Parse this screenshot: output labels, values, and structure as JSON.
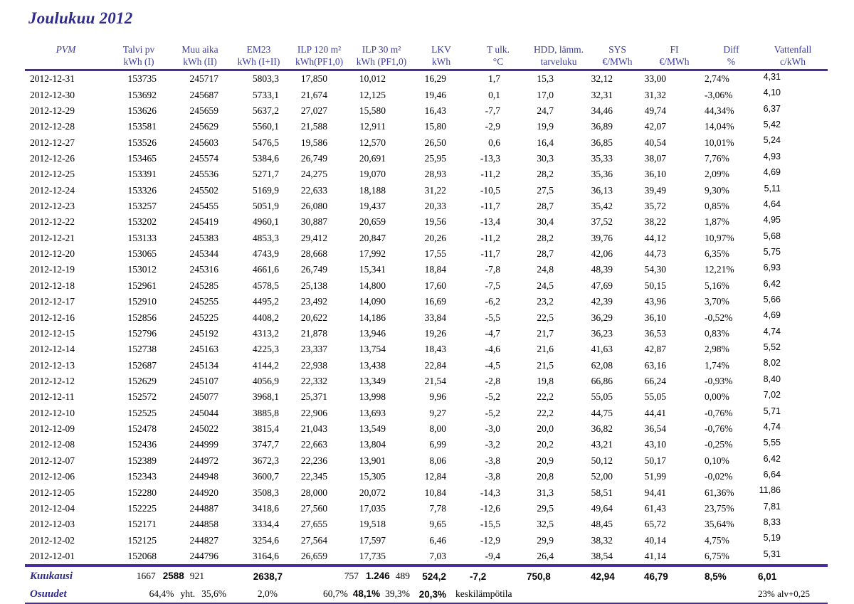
{
  "title": "Joulukuu 2012",
  "colors": {
    "title_text": "#2d2a8c",
    "header_text": "#3c3c9e",
    "rule_line": "#4a2d9d",
    "body_text": "#000000"
  },
  "table": {
    "columns": [
      {
        "l1": "PVM",
        "l2": ""
      },
      {
        "l1": "Talvi pv",
        "l2": "kWh (I)"
      },
      {
        "l1": "Muu aika",
        "l2": "kWh (II)"
      },
      {
        "l1": "EM23",
        "l2": "kWh (I+II)"
      },
      {
        "l1": "ILP 120 m²",
        "l2": "kWh(PF1,0)"
      },
      {
        "l1": "ILP 30 m²",
        "l2": "kWh (PF1,0)"
      },
      {
        "l1": "LKV",
        "l2": "kWh"
      },
      {
        "l1": "T ulk.",
        "l2": "°C"
      },
      {
        "l1": "HDD, lämm.",
        "l2": "tarveluku"
      },
      {
        "l1": "SYS",
        "l2": "€/MWh"
      },
      {
        "l1": "FI",
        "l2": "€/MWh"
      },
      {
        "l1": "Diff",
        "l2": "%"
      },
      {
        "l1": "Vattenfall",
        "l2": "c/kWh"
      }
    ],
    "rows": [
      [
        "2012-12-31",
        "153735",
        "245717",
        "5803,3",
        "17,850",
        "10,012",
        "16,29",
        "1,7",
        "15,3",
        "32,12",
        "33,00",
        "2,74%",
        "4,31"
      ],
      [
        "2012-12-30",
        "153692",
        "245687",
        "5733,1",
        "21,674",
        "12,125",
        "19,46",
        "0,1",
        "17,0",
        "32,31",
        "31,32",
        "-3,06%",
        "4,10"
      ],
      [
        "2012-12-29",
        "153626",
        "245659",
        "5637,2",
        "27,027",
        "15,580",
        "16,43",
        "-7,7",
        "24,7",
        "34,46",
        "49,74",
        "44,34%",
        "6,37"
      ],
      [
        "2012-12-28",
        "153581",
        "245629",
        "5560,1",
        "21,588",
        "12,911",
        "15,80",
        "-2,9",
        "19,9",
        "36,89",
        "42,07",
        "14,04%",
        "5,42"
      ],
      [
        "2012-12-27",
        "153526",
        "245603",
        "5476,5",
        "19,586",
        "12,570",
        "26,50",
        "0,6",
        "16,4",
        "36,85",
        "40,54",
        "10,01%",
        "5,24"
      ],
      [
        "2012-12-26",
        "153465",
        "245574",
        "5384,6",
        "26,749",
        "20,691",
        "25,95",
        "-13,3",
        "30,3",
        "35,33",
        "38,07",
        "7,76%",
        "4,93"
      ],
      [
        "2012-12-25",
        "153391",
        "245536",
        "5271,7",
        "24,275",
        "19,070",
        "28,93",
        "-11,2",
        "28,2",
        "35,36",
        "36,10",
        "2,09%",
        "4,69"
      ],
      [
        "2012-12-24",
        "153326",
        "245502",
        "5169,9",
        "22,633",
        "18,188",
        "31,22",
        "-10,5",
        "27,5",
        "36,13",
        "39,49",
        "9,30%",
        "5,11"
      ],
      [
        "2012-12-23",
        "153257",
        "245455",
        "5051,9",
        "26,080",
        "19,437",
        "20,33",
        "-11,7",
        "28,7",
        "35,42",
        "35,72",
        "0,85%",
        "4,64"
      ],
      [
        "2012-12-22",
        "153202",
        "245419",
        "4960,1",
        "30,887",
        "20,659",
        "19,56",
        "-13,4",
        "30,4",
        "37,52",
        "38,22",
        "1,87%",
        "4,95"
      ],
      [
        "2012-12-21",
        "153133",
        "245383",
        "4853,3",
        "29,412",
        "20,847",
        "20,26",
        "-11,2",
        "28,2",
        "39,76",
        "44,12",
        "10,97%",
        "5,68"
      ],
      [
        "2012-12-20",
        "153065",
        "245344",
        "4743,9",
        "28,668",
        "17,992",
        "17,55",
        "-11,7",
        "28,7",
        "42,06",
        "44,73",
        "6,35%",
        "5,75"
      ],
      [
        "2012-12-19",
        "153012",
        "245316",
        "4661,6",
        "26,749",
        "15,341",
        "18,84",
        "-7,8",
        "24,8",
        "48,39",
        "54,30",
        "12,21%",
        "6,93"
      ],
      [
        "2012-12-18",
        "152961",
        "245285",
        "4578,5",
        "25,138",
        "14,800",
        "17,60",
        "-7,5",
        "24,5",
        "47,69",
        "50,15",
        "5,16%",
        "6,42"
      ],
      [
        "2012-12-17",
        "152910",
        "245255",
        "4495,2",
        "23,492",
        "14,090",
        "16,69",
        "-6,2",
        "23,2",
        "42,39",
        "43,96",
        "3,70%",
        "5,66"
      ],
      [
        "2012-12-16",
        "152856",
        "245225",
        "4408,2",
        "20,622",
        "14,186",
        "33,84",
        "-5,5",
        "22,5",
        "36,29",
        "36,10",
        "-0,52%",
        "4,69"
      ],
      [
        "2012-12-15",
        "152796",
        "245192",
        "4313,2",
        "21,878",
        "13,946",
        "19,26",
        "-4,7",
        "21,7",
        "36,23",
        "36,53",
        "0,83%",
        "4,74"
      ],
      [
        "2012-12-14",
        "152738",
        "245163",
        "4225,3",
        "23,337",
        "13,754",
        "18,43",
        "-4,6",
        "21,6",
        "41,63",
        "42,87",
        "2,98%",
        "5,52"
      ],
      [
        "2012-12-13",
        "152687",
        "245134",
        "4144,2",
        "22,938",
        "13,438",
        "22,84",
        "-4,5",
        "21,5",
        "62,08",
        "63,16",
        "1,74%",
        "8,02"
      ],
      [
        "2012-12-12",
        "152629",
        "245107",
        "4056,9",
        "22,332",
        "13,349",
        "21,54",
        "-2,8",
        "19,8",
        "66,86",
        "66,24",
        "-0,93%",
        "8,40"
      ],
      [
        "2012-12-11",
        "152572",
        "245077",
        "3968,1",
        "25,371",
        "13,998",
        "9,96",
        "-5,2",
        "22,2",
        "55,05",
        "55,05",
        "0,00%",
        "7,02"
      ],
      [
        "2012-12-10",
        "152525",
        "245044",
        "3885,8",
        "22,906",
        "13,693",
        "9,27",
        "-5,2",
        "22,2",
        "44,75",
        "44,41",
        "-0,76%",
        "5,71"
      ],
      [
        "2012-12-09",
        "152478",
        "245022",
        "3815,4",
        "21,043",
        "13,549",
        "8,00",
        "-3,0",
        "20,0",
        "36,82",
        "36,54",
        "-0,76%",
        "4,74"
      ],
      [
        "2012-12-08",
        "152436",
        "244999",
        "3747,7",
        "22,663",
        "13,804",
        "6,99",
        "-3,2",
        "20,2",
        "43,21",
        "43,10",
        "-0,25%",
        "5,55"
      ],
      [
        "2012-12-07",
        "152389",
        "244972",
        "3672,3",
        "22,236",
        "13,901",
        "8,06",
        "-3,8",
        "20,9",
        "50,12",
        "50,17",
        "0,10%",
        "6,42"
      ],
      [
        "2012-12-06",
        "152343",
        "244948",
        "3600,7",
        "22,345",
        "15,305",
        "12,84",
        "-3,8",
        "20,8",
        "52,00",
        "51,99",
        "-0,02%",
        "6,64"
      ],
      [
        "2012-12-05",
        "152280",
        "244920",
        "3508,3",
        "28,000",
        "20,072",
        "10,84",
        "-14,3",
        "31,3",
        "58,51",
        "94,41",
        "61,36%",
        "11,86"
      ],
      [
        "2012-12-04",
        "152225",
        "244887",
        "3418,6",
        "27,560",
        "17,035",
        "7,78",
        "-12,6",
        "29,5",
        "49,64",
        "61,43",
        "23,75%",
        "7,81"
      ],
      [
        "2012-12-03",
        "152171",
        "244858",
        "3334,4",
        "27,655",
        "19,518",
        "9,65",
        "-15,5",
        "32,5",
        "48,45",
        "65,72",
        "35,64%",
        "8,33"
      ],
      [
        "2012-12-02",
        "152125",
        "244827",
        "3254,6",
        "27,564",
        "17,597",
        "6,46",
        "-12,9",
        "29,9",
        "38,32",
        "40,14",
        "4,75%",
        "5,19"
      ],
      [
        "2012-12-01",
        "152068",
        "244796",
        "3164,6",
        "26,659",
        "17,735",
        "7,03",
        "-9,4",
        "26,4",
        "38,54",
        "41,14",
        "6,75%",
        "5,31"
      ]
    ],
    "summary": {
      "kuukausi": {
        "label": "Kuukausi",
        "talvi": "1667",
        "yht": "2588",
        "muu": "921",
        "em23": "2638,7",
        "ilp120": "757",
        "ilp_yht": "1.246",
        "ilp30": "489",
        "lkv": "524,2",
        "t_ulk": "-7,2",
        "hdd": "750,8",
        "sys": "42,94",
        "fi": "46,79",
        "diff": "8,5%",
        "vattenfall": "6,01"
      },
      "osuudet": {
        "label": "Osuudet",
        "talvi": "64,4%",
        "yht_label": "yht.",
        "muu": "35,6%",
        "em23": "2,0%",
        "ilp120": "60,7%",
        "ilp_yht": "48,1%",
        "ilp30": "39,3%",
        "lkv": "20,3%",
        "note": "keskilämpötila",
        "vat_note": "23% alv+0,25"
      }
    }
  }
}
